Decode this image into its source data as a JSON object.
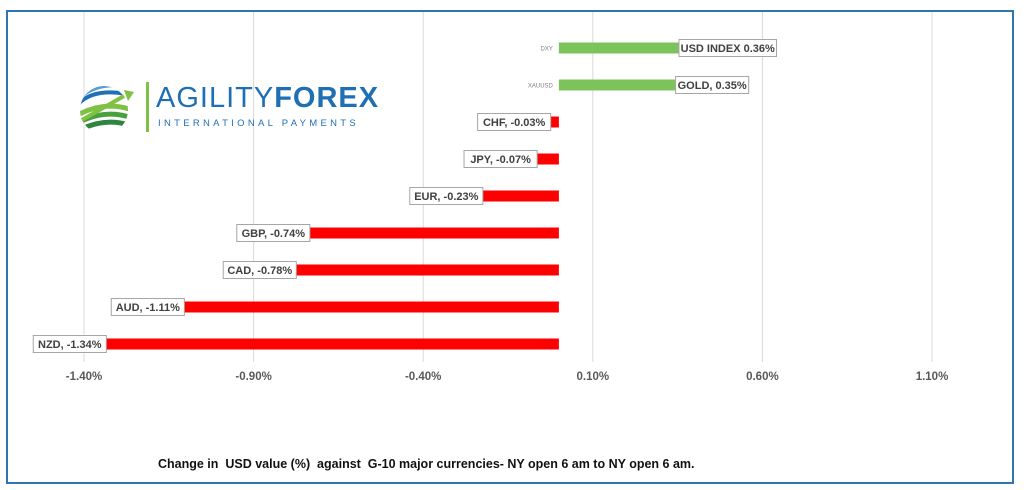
{
  "caption": "Change in  USD value (%)  against  G-10 major currencies- NY open 6 am to NY open 6 am.",
  "logo": {
    "word1": "AGILITY",
    "word2": "FOREX",
    "tagline": "INTERNATIONAL PAYMENTS"
  },
  "colors": {
    "positive": "#7dc35b",
    "negative": "#ff0000",
    "grid": "#d9d9d9",
    "border": "#2e75b6"
  },
  "chart_data": {
    "type": "bar",
    "orientation": "horizontal",
    "xlim": [
      -1.4,
      1.1
    ],
    "xticks": [
      "-1.40%",
      "-0.90%",
      "-0.40%",
      "0.10%",
      "0.60%",
      "1.10%"
    ],
    "xtick_values": [
      -1.4,
      -0.9,
      -0.4,
      0.1,
      0.6,
      1.1
    ],
    "grid": true,
    "categories": [
      "DXY",
      "XAUUSD",
      "CHF",
      "JPY",
      "EUR",
      "GBP",
      "CAD",
      "AUD",
      "NZD"
    ],
    "values": [
      0.36,
      0.35,
      -0.03,
      -0.07,
      -0.23,
      -0.74,
      -0.78,
      -1.11,
      -1.34
    ],
    "data_labels": [
      "USD INDEX 0.36%",
      "GOLD, 0.35%",
      "CHF, -0.03%",
      "JPY, -0.07%",
      "EUR, -0.23%",
      "GBP, -0.74%",
      "CAD, -0.78%",
      "AUD, -1.11%",
      "NZD, -1.34%"
    ],
    "category_labels": [
      "DXY",
      "XAUUSD",
      "",
      "",
      "",
      "",
      "",
      "",
      ""
    ]
  }
}
